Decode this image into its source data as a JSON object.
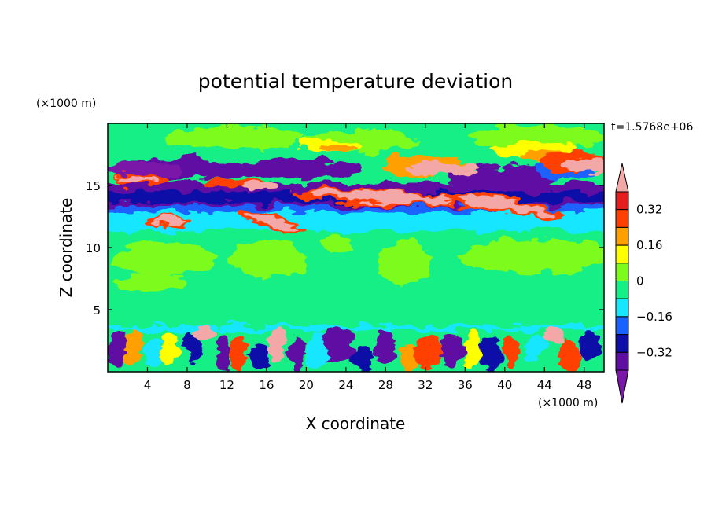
{
  "chart_data": {
    "type": "heatmap",
    "title": "potential temperature deviation",
    "xlabel": "X coordinate",
    "ylabel": "Z coordinate",
    "x_unit": "(×1000 m)",
    "y_unit": "(×1000 m)",
    "time_label": "t=1.5768e+06",
    "xlim": [
      0,
      50
    ],
    "ylim": [
      0,
      20
    ],
    "x_ticks": [
      4,
      8,
      12,
      16,
      20,
      24,
      28,
      32,
      36,
      40,
      44,
      48
    ],
    "y_ticks": [
      5,
      10,
      15
    ],
    "colorbar": {
      "levels": [
        -0.4,
        -0.32,
        -0.24,
        -0.16,
        -0.08,
        0,
        0.08,
        0.16,
        0.24,
        0.32,
        0.4
      ],
      "tick_labels": [
        "0.32",
        "0.16",
        "0",
        "−0.16",
        "−0.32"
      ],
      "tick_values": [
        0.32,
        0.16,
        0,
        -0.16,
        -0.32
      ],
      "colors": [
        "#7a16a8",
        "#5e0fa2",
        "#0e0ea8",
        "#1a62ff",
        "#17e6ff",
        "#14ef86",
        "#7dfb1c",
        "#ffff00",
        "#ff9f00",
        "#ff4000",
        "#e31e1e",
        "#f4a7a7"
      ],
      "extend": "both"
    }
  }
}
